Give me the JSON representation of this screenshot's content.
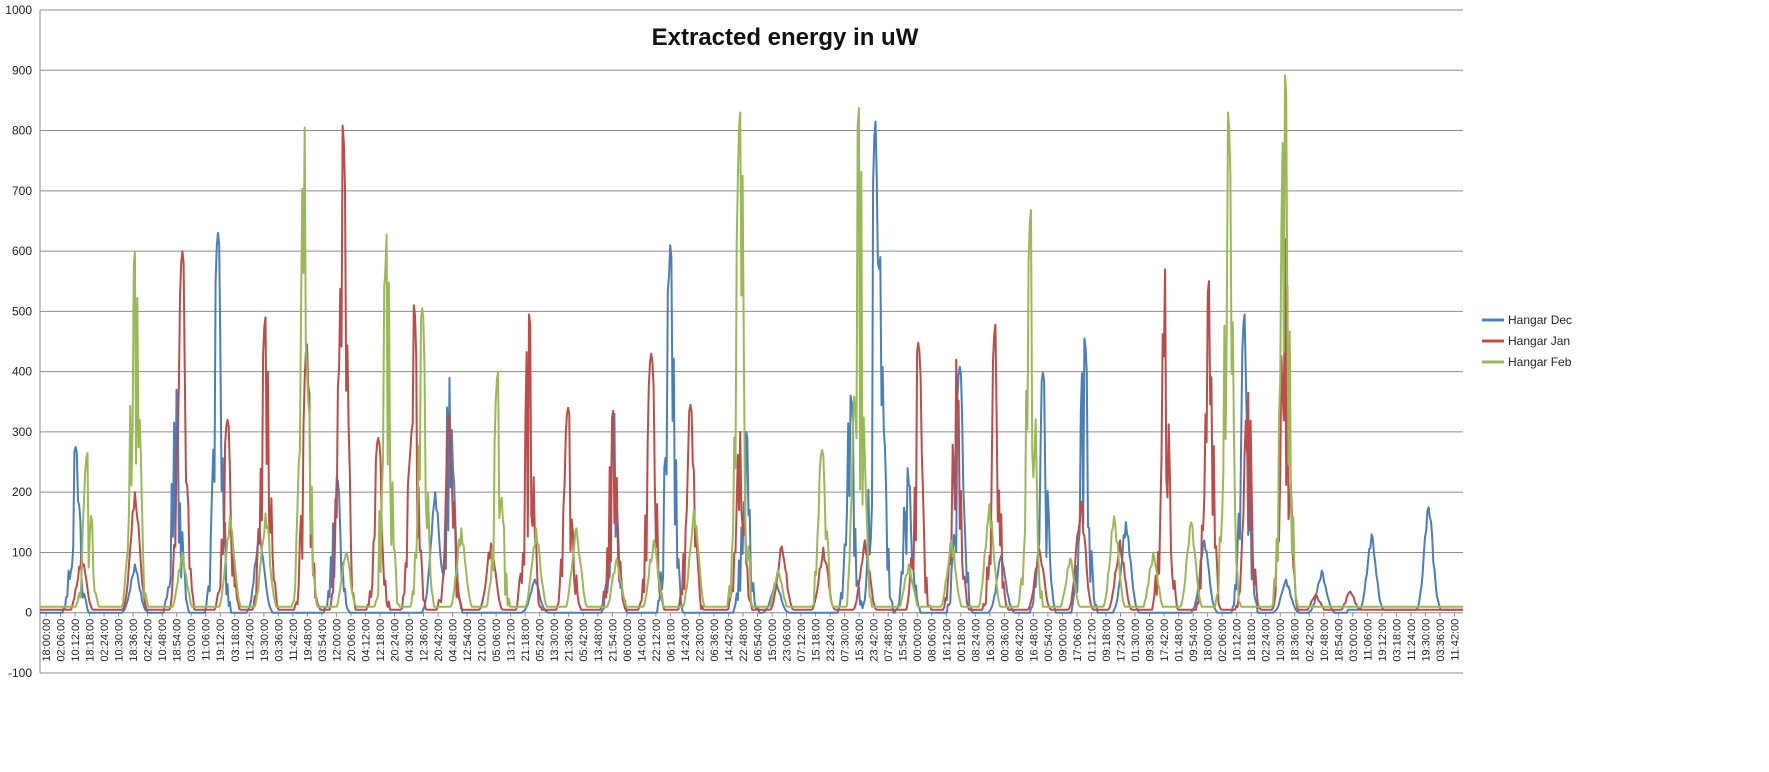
{
  "chart_data": {
    "type": "line",
    "title": "Extracted energy in uW",
    "xlabel": "",
    "ylabel": "",
    "ylim": [
      -100,
      1000
    ],
    "yticks": [
      -100,
      0,
      100,
      200,
      300,
      400,
      500,
      600,
      700,
      800,
      900,
      1000
    ],
    "grid": true,
    "legend_position": "right",
    "colors": {
      "dec": "#4a7ebb",
      "jan": "#be4b48",
      "feb": "#98b954"
    },
    "x_tick_labels": [
      "18:00:00",
      "02:06:00",
      "10:12:00",
      "18:18:00",
      "02:24:00",
      "10:30:00",
      "18:36:00",
      "02:42:00",
      "10:48:00",
      "18:54:00",
      "03:00:00",
      "11:06:00",
      "19:12:00",
      "03:18:00",
      "11:24:00",
      "19:30:00",
      "03:36:00",
      "11:42:00",
      "19:48:00",
      "03:54:00",
      "12:00:00",
      "20:06:00",
      "04:12:00",
      "12:18:00",
      "20:24:00",
      "04:30:00",
      "12:36:00",
      "20:42:00",
      "04:48:00",
      "12:54:00",
      "21:00:00",
      "05:06:00",
      "13:12:00",
      "21:18:00",
      "05:24:00",
      "13:30:00",
      "21:36:00",
      "05:42:00",
      "13:48:00",
      "21:54:00",
      "06:00:00",
      "14:06:00",
      "22:12:00",
      "06:18:00",
      "14:24:00",
      "22:30:00",
      "06:36:00",
      "14:42:00",
      "22:48:00",
      "06:54:00",
      "15:00:00",
      "23:06:00",
      "07:12:00",
      "15:18:00",
      "23:24:00",
      "07:30:00",
      "15:36:00",
      "23:42:00",
      "07:48:00",
      "15:54:00",
      "00:00:00",
      "08:06:00",
      "16:12:00",
      "00:18:00",
      "08:24:00",
      "16:30:00",
      "00:36:00",
      "08:42:00",
      "16:48:00",
      "00:54:00",
      "09:00:00",
      "17:06:00",
      "01:12:00",
      "09:18:00",
      "17:24:00",
      "01:30:00",
      "09:36:00",
      "17:42:00",
      "01:48:00",
      "09:54:00",
      "18:00:00",
      "02:06:00",
      "10:12:00",
      "18:18:00",
      "02:24:00",
      "10:30:00",
      "18:36:00",
      "02:42:00",
      "10:48:00",
      "18:54:00",
      "03:00:00",
      "11:06:00",
      "19:12:00",
      "03:18:00",
      "11:24:00",
      "19:30:00",
      "03:36:00",
      "11:42:00"
    ],
    "num_points": 1200,
    "baselines": {
      "dec": 0,
      "jan": 5,
      "feb": 10
    },
    "dec_tail_baseline": {
      "from_x": 1102,
      "value": 5
    },
    "series": [
      {
        "name": "Hangar Dec",
        "color": "#4a7ebb",
        "peaks": [
          [
            30,
            275
          ],
          [
            80,
            80
          ],
          [
            115,
            370
          ],
          [
            150,
            630
          ],
          [
            185,
            135
          ],
          [
            250,
            225
          ],
          [
            333,
            200
          ],
          [
            345,
            390
          ],
          [
            417,
            55
          ],
          [
            484,
            330
          ],
          [
            531,
            610
          ],
          [
            595,
            300
          ],
          [
            620,
            50
          ],
          [
            683,
            360
          ],
          [
            704,
            815
          ],
          [
            708,
            590
          ],
          [
            731,
            240
          ],
          [
            775,
            408
          ],
          [
            810,
            95
          ],
          [
            845,
            398
          ],
          [
            880,
            455
          ],
          [
            915,
            150
          ],
          [
            981,
            120
          ],
          [
            1015,
            495
          ],
          [
            1050,
            55
          ],
          [
            1080,
            70
          ],
          [
            1122,
            130
          ],
          [
            1170,
            175
          ]
        ]
      },
      {
        "name": "Hangar Jan",
        "color": "#be4b48",
        "peaks": [
          [
            35,
            95
          ],
          [
            80,
            200
          ],
          [
            120,
            600
          ],
          [
            158,
            320
          ],
          [
            190,
            490
          ],
          [
            225,
            445
          ],
          [
            255,
            808
          ],
          [
            285,
            290
          ],
          [
            315,
            510
          ],
          [
            345,
            330
          ],
          [
            380,
            115
          ],
          [
            412,
            495
          ],
          [
            445,
            340
          ],
          [
            483,
            335
          ],
          [
            515,
            430
          ],
          [
            548,
            345
          ],
          [
            590,
            300
          ],
          [
            625,
            110
          ],
          [
            660,
            108
          ],
          [
            695,
            120
          ],
          [
            740,
            448
          ],
          [
            772,
            420
          ],
          [
            805,
            478
          ],
          [
            842,
            105
          ],
          [
            877,
            185
          ],
          [
            910,
            120
          ],
          [
            948,
            570
          ],
          [
            985,
            550
          ],
          [
            1018,
            365
          ],
          [
            1049,
            620
          ],
          [
            1075,
            30
          ],
          [
            1104,
            35
          ]
        ]
      },
      {
        "name": "Hangar Feb",
        "color": "#98b954",
        "peaks": [
          [
            40,
            265
          ],
          [
            80,
            598
          ],
          [
            120,
            100
          ],
          [
            160,
            160
          ],
          [
            190,
            165
          ],
          [
            223,
            805
          ],
          [
            258,
            100
          ],
          [
            292,
            627
          ],
          [
            322,
            505
          ],
          [
            355,
            140
          ],
          [
            386,
            400
          ],
          [
            418,
            140
          ],
          [
            452,
            140
          ],
          [
            486,
            90
          ],
          [
            517,
            120
          ],
          [
            551,
            170
          ],
          [
            590,
            830
          ],
          [
            622,
            70
          ],
          [
            659,
            270
          ],
          [
            690,
            837
          ],
          [
            732,
            80
          ],
          [
            768,
            120
          ],
          [
            800,
            180
          ],
          [
            835,
            668
          ],
          [
            868,
            90
          ],
          [
            905,
            160
          ],
          [
            938,
            100
          ],
          [
            970,
            150
          ],
          [
            1001,
            830
          ],
          [
            1049,
            892
          ]
        ]
      }
    ]
  }
}
